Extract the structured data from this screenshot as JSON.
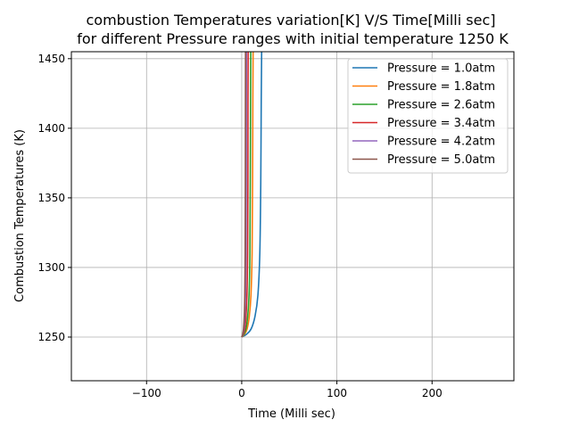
{
  "chart_data": {
    "type": "line",
    "title": "combustion Temperatures variation[K] V/S Time[Milli sec]",
    "subtitle": "for different Pressure ranges with initial temperature 1250 K",
    "xlabel": "Time (Milli sec)",
    "ylabel": "Combustion Temperatures (K)",
    "xlim": [
      -179,
      286
    ],
    "ylim": [
      1218.6,
      1455
    ],
    "xticks": [
      -100,
      0,
      100,
      200
    ],
    "xtick_labels": [
      "−100",
      "0",
      "100",
      "200"
    ],
    "yticks": [
      1250,
      1300,
      1350,
      1400,
      1450
    ],
    "ytick_labels": [
      "1250",
      "1300",
      "1350",
      "1400",
      "1450"
    ],
    "grid": true,
    "legend_placement": "top-right",
    "series": [
      {
        "name": "Pressure = 1.0atm",
        "color": "#1f77b4",
        "x": [
          0,
          5,
          10,
          14,
          17,
          19,
          20,
          20.5,
          21
        ],
        "y": [
          1250,
          1252,
          1256,
          1265,
          1280,
          1310,
          1360,
          1420,
          1460
        ]
      },
      {
        "name": "Pressure = 1.8atm",
        "color": "#ff7f0e",
        "x": [
          0,
          2.9,
          5.7,
          8,
          9.7,
          10.9,
          11.4,
          11.7,
          12
        ],
        "y": [
          1250,
          1252,
          1256,
          1265,
          1280,
          1310,
          1360,
          1420,
          1460
        ]
      },
      {
        "name": "Pressure = 2.6atm",
        "color": "#2ca02c",
        "x": [
          0,
          2.3,
          4.5,
          6.3,
          7.7,
          8.6,
          9,
          9.3,
          9.5
        ],
        "y": [
          1250,
          1252,
          1256,
          1265,
          1280,
          1310,
          1360,
          1420,
          1460
        ]
      },
      {
        "name": "Pressure = 3.4atm",
        "color": "#d62728",
        "x": [
          0,
          1.6,
          3.2,
          4.5,
          5.5,
          6.2,
          6.5,
          6.6,
          6.8
        ],
        "y": [
          1250,
          1252,
          1256,
          1265,
          1280,
          1310,
          1360,
          1420,
          1460
        ]
      },
      {
        "name": "Pressure = 4.2atm",
        "color": "#9467bd",
        "x": [
          0,
          1.2,
          2.4,
          3.3,
          4,
          4.5,
          4.8,
          4.9,
          5
        ],
        "y": [
          1250,
          1252,
          1256,
          1265,
          1280,
          1310,
          1360,
          1420,
          1460
        ]
      },
      {
        "name": "Pressure = 5.0atm",
        "color": "#8c564b",
        "x": [
          0,
          1,
          1.9,
          2.7,
          3.2,
          3.6,
          3.8,
          3.9,
          4
        ],
        "y": [
          1250,
          1252,
          1256,
          1265,
          1280,
          1310,
          1360,
          1420,
          1460
        ]
      }
    ]
  }
}
